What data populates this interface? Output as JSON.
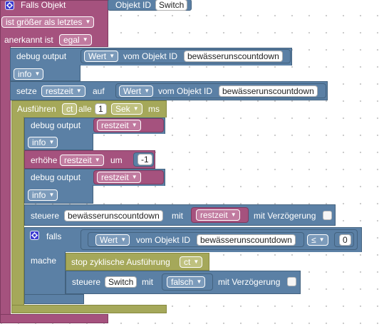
{
  "trigger": {
    "title": "Falls Objekt",
    "objekt_id_label": "Objekt ID",
    "objekt_id_value": "Switch",
    "condition": "ist größer als letztes",
    "ack_label": "anerkannt ist",
    "ack_value": "egal"
  },
  "debug1": {
    "label": "debug output",
    "value_dropdown": "Wert",
    "from_label": "vom Objekt ID",
    "object": "bewässerunscountdown",
    "level": "info"
  },
  "setze": {
    "label": "setze",
    "variable": "restzeit",
    "on_label": "auf",
    "value_dropdown": "Wert",
    "from_label": "vom Objekt ID",
    "object": "bewässerunscountdown"
  },
  "interval": {
    "label": "Ausführen",
    "name": "ct",
    "every_label": "alle",
    "amount": "1",
    "unit": "Sek",
    "ms_label": "ms"
  },
  "debug2": {
    "label": "debug output",
    "variable": "restzeit",
    "level": "info"
  },
  "increment": {
    "label": "erhöhe",
    "variable": "restzeit",
    "by_label": "um",
    "amount": "-1"
  },
  "debug3": {
    "label": "debug output",
    "variable": "restzeit",
    "level": "info"
  },
  "control": {
    "label": "steuere",
    "object": "bewässerunscountdown",
    "with_label": "mit",
    "variable": "restzeit",
    "delay_label": "mit Verzögerung"
  },
  "if_block": {
    "label": "falls",
    "value_dropdown": "Wert",
    "from_label": "vom Objekt ID",
    "object": "bewässerunscountdown",
    "operator": "≤",
    "compare_value": "0",
    "then_label": "mache"
  },
  "stop": {
    "label": "stop zyklische Ausführung",
    "name": "ct"
  },
  "control2": {
    "label": "steuere",
    "object": "Switch",
    "with_label": "mit",
    "value": "falsch",
    "delay_label": "mit Verzögerung"
  },
  "icons": [
    "gear-icon",
    "dropdown-arrow-icon",
    "checkbox-icon"
  ],
  "colors": {
    "event": "#a5527e",
    "action": "#5b80a5",
    "timer": "#a5a85a",
    "background": "#ffffff"
  }
}
